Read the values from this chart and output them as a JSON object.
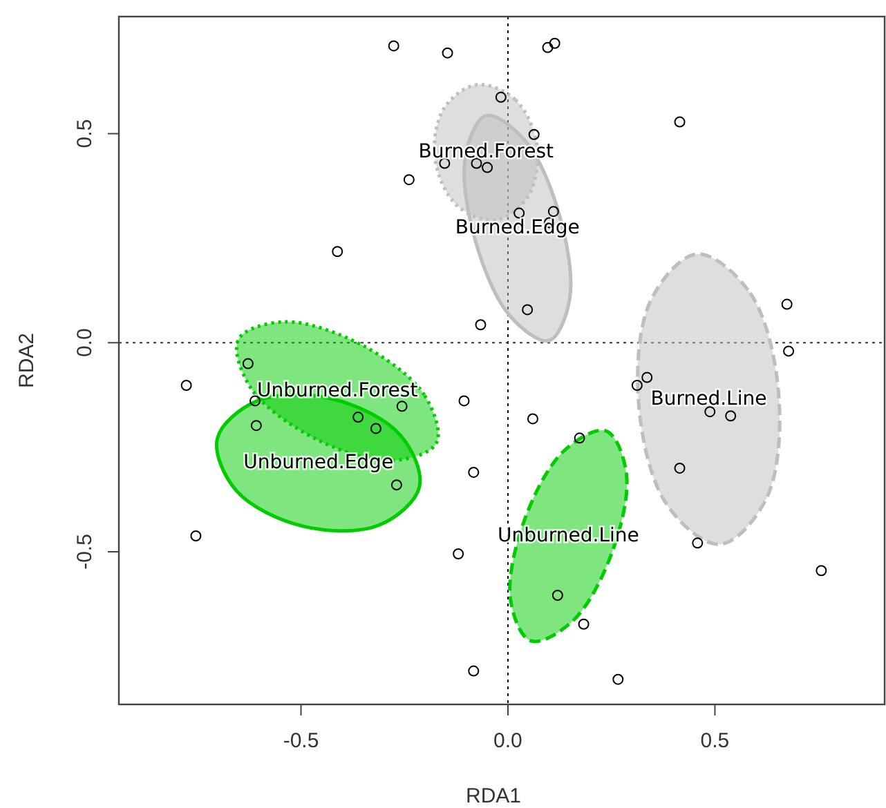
{
  "chart_data": {
    "type": "scatter",
    "xlabel": "RDA1",
    "ylabel": "RDA2",
    "xlim": [
      -0.94,
      0.91
    ],
    "ylim": [
      -0.865,
      0.78
    ],
    "xticks": [
      {
        "value": -0.5,
        "label": "-0.5"
      },
      {
        "value": 0,
        "label": "0.0"
      },
      {
        "value": 0.5,
        "label": "0.5"
      }
    ],
    "yticks": [
      {
        "value": -0.5,
        "label": "-0.5"
      },
      {
        "value": 0,
        "label": "0.0"
      },
      {
        "value": 0.5,
        "label": "0.5"
      }
    ],
    "grid": false,
    "ref_lines": [
      {
        "axis": "x",
        "value": 0,
        "line_style": "dotted",
        "color": "#000000"
      },
      {
        "axis": "y",
        "value": 0,
        "line_style": "dotted",
        "color": "#333333"
      }
    ],
    "series": [
      {
        "type": "area",
        "name": "Burned.Forest",
        "color": "#bebebe",
        "line_style": "dotted",
        "x": [
          -0.076,
          0.018,
          0.07,
          0.05,
          -0.03,
          -0.124,
          -0.176,
          -0.156
        ],
        "values": [
          0.617,
          0.581,
          0.472,
          0.352,
          0.293,
          0.329,
          0.439,
          0.558
        ]
      },
      {
        "type": "area",
        "name": "Burned.Edge",
        "color": "#bebebe",
        "line_style": "solid",
        "x": [
          -0.053,
          0.041,
          0.125,
          0.149,
          0.099,
          0.005,
          -0.079,
          -0.103
        ],
        "values": [
          0.543,
          0.484,
          0.303,
          0.104,
          0.005,
          0.064,
          0.245,
          0.444
        ]
      },
      {
        "type": "area",
        "name": "Burned.Line",
        "color": "#bebebe",
        "line_style": "dashed",
        "x": [
          0.457,
          0.585,
          0.654,
          0.625,
          0.513,
          0.385,
          0.316,
          0.345
        ],
        "values": [
          0.212,
          0.119,
          -0.122,
          -0.371,
          -0.482,
          -0.389,
          -0.148,
          0.101
        ]
      },
      {
        "type": "area",
        "name": "Unburned.Forest",
        "color": "#00cc00",
        "line_style": "dotted",
        "x": [
          -0.173,
          -0.202,
          -0.354,
          -0.54,
          -0.651,
          -0.622,
          -0.47,
          -0.284
        ],
        "values": [
          -0.24,
          -0.125,
          -0.005,
          0.05,
          0.008,
          -0.107,
          -0.227,
          -0.282
        ]
      },
      {
        "type": "area",
        "name": "Unburned.Edge",
        "color": "#00cc00",
        "line_style": "solid",
        "x": [
          -0.214,
          -0.26,
          -0.422,
          -0.605,
          -0.702,
          -0.656,
          -0.494,
          -0.311
        ],
        "values": [
          -0.345,
          -0.221,
          -0.135,
          -0.139,
          -0.229,
          -0.354,
          -0.439,
          -0.436
        ]
      },
      {
        "type": "area",
        "name": "Unburned.Line",
        "color": "#00cc00",
        "line_style": "dashed",
        "x": [
          0.237,
          0.286,
          0.252,
          0.156,
          0.055,
          0.006,
          0.04,
          0.136
        ],
        "values": [
          -0.211,
          -0.312,
          -0.5,
          -0.666,
          -0.713,
          -0.613,
          -0.424,
          -0.258
        ]
      },
      {
        "color": "#000000",
        "marker": "circle",
        "x": [
          -0.276,
          -0.146,
          -0.017,
          -0.153,
          -0.076,
          -0.05,
          -0.239,
          0.027,
          -0.412,
          -0.066,
          0.096,
          0.113,
          0.063,
          0.415,
          0.11,
          0.1,
          0.047,
          0.674,
          0.678,
          -0.628,
          -0.777,
          -0.611,
          -0.608,
          -0.362,
          -0.319,
          -0.256,
          -0.106,
          -0.083,
          -0.269,
          -0.754,
          -0.12,
          -0.083,
          0.312,
          0.336,
          0.06,
          0.488,
          0.538,
          0.173,
          0.415,
          0.458,
          0.757,
          0.12,
          0.183,
          0.266
        ],
        "values": [
          0.71,
          0.693,
          0.587,
          0.429,
          0.429,
          0.419,
          0.39,
          0.31,
          0.218,
          0.043,
          0.706,
          0.716,
          0.498,
          0.528,
          0.314,
          0.287,
          0.079,
          0.092,
          -0.02,
          -0.05,
          -0.102,
          -0.139,
          -0.198,
          -0.178,
          -0.205,
          -0.152,
          -0.139,
          -0.31,
          -0.34,
          -0.462,
          -0.505,
          -0.785,
          -0.102,
          -0.083,
          -0.182,
          -0.165,
          -0.175,
          -0.228,
          -0.3,
          -0.479,
          -0.545,
          -0.604,
          -0.673,
          -0.805
        ]
      }
    ]
  }
}
